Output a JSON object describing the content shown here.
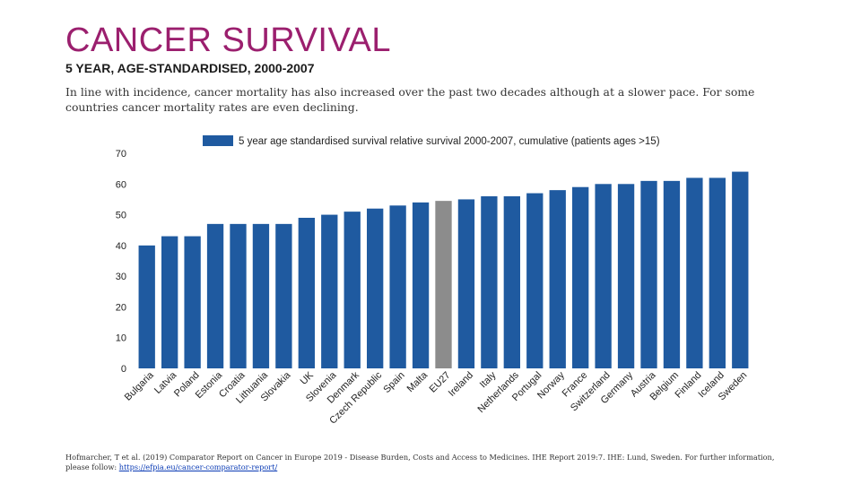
{
  "header": {
    "title": "CANCER SURVIVAL",
    "subtitle": "5 YEAR, AGE-STANDARDISED, 2000-2007",
    "intro": "In line with incidence, cancer mortality has also increased over the past two decades although at a slower pace. For some countries cancer mortality rates are even declining."
  },
  "chart_data": {
    "type": "bar",
    "categories": [
      "Bulgaria",
      "Latvia",
      "Poland",
      "Estonia",
      "Croatia",
      "Lithuania",
      "Slovakia",
      "UK",
      "Slovenia",
      "Denmark",
      "Czech Republic",
      "Spain",
      "Malta",
      "EU27",
      "Ireland",
      "Italy",
      "Netherlands",
      "Portugal",
      "Norway",
      "France",
      "Switzerland",
      "Germany",
      "Austria",
      "Belgium",
      "Finland",
      "Iceland",
      "Sweden"
    ],
    "series": [
      {
        "name": "5 year age standardised survival relative survival 2000-2007, cumulative (patients ages >15)",
        "values": [
          40,
          43,
          43,
          47,
          47,
          47,
          47,
          49,
          50,
          51,
          52,
          53,
          54,
          54.5,
          55,
          56,
          56,
          57,
          58,
          59,
          60,
          60,
          61,
          61,
          62,
          62,
          64
        ]
      }
    ],
    "highlight_category": "EU27",
    "colors": {
      "bar": "#1f5aa0",
      "highlight": "#8c8c8c",
      "axis_text": "#222222"
    },
    "ylim": [
      0,
      70
    ],
    "yticks": [
      0,
      10,
      20,
      30,
      40,
      50,
      60,
      70
    ],
    "grid": false,
    "legend_position": "top",
    "xlabel": "",
    "ylabel": ""
  },
  "footer": {
    "citation": "Hofmarcher, T et al. (2019) Comparator Report on Cancer in Europe 2019 - Disease Burden, Costs and Access to Medicines. IHE Report 2019:7. IHE: Lund, Sweden. For further information, please follow: ",
    "link_text": "https://efpia.eu/cancer-comparator-report/"
  }
}
